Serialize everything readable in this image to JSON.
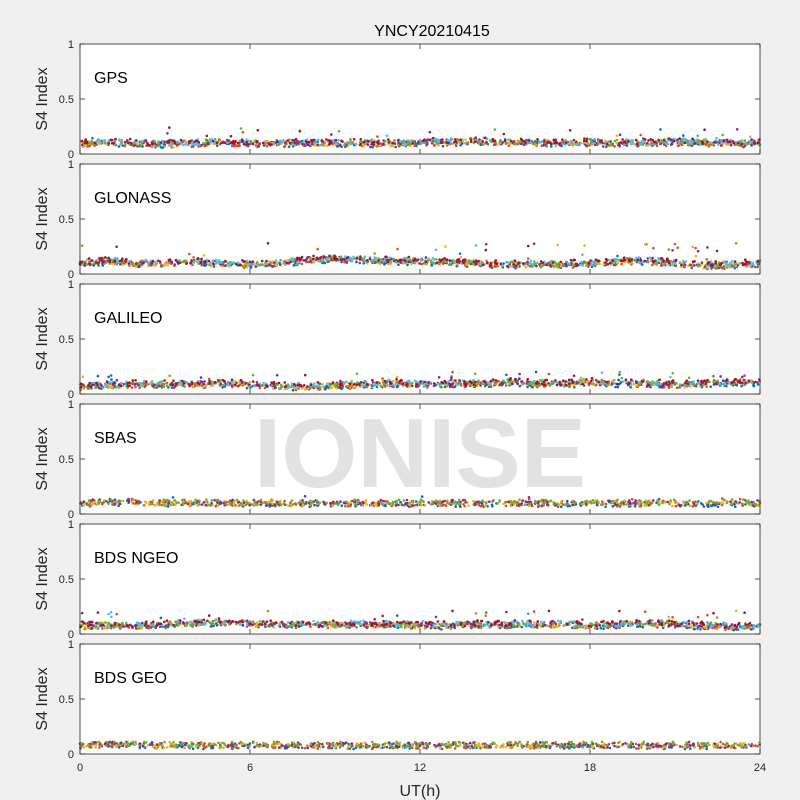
{
  "figure": {
    "title": "YNCY20210415",
    "watermark": "IONISE"
  },
  "colors": {
    "series": [
      "#0072BD",
      "#D95319",
      "#EDB120",
      "#7E2F8E",
      "#77AC30",
      "#4DBEEE",
      "#A2142F"
    ],
    "axes_bg": "#ffffff",
    "figure_bg": "#f0f0f0",
    "axis_line": "#262626",
    "watermark": "#e2e2e2"
  },
  "chart_data": [
    {
      "type": "scatter",
      "panel_label": "GPS",
      "ylabel": "S4 Index",
      "ylim": [
        0,
        1
      ],
      "yticks": [
        0,
        0.5,
        1
      ],
      "xlim": [
        0,
        24
      ],
      "xticks": [
        0,
        6,
        12,
        18,
        24
      ],
      "x_tick_labels_shown": false,
      "grid": false,
      "series_count": 7,
      "x": [
        0,
        1,
        2,
        3,
        4,
        5,
        6,
        7,
        8,
        9,
        10,
        11,
        12,
        13,
        14,
        15,
        16,
        17,
        18,
        19,
        20,
        21,
        22,
        23,
        24
      ],
      "s4_mean": [
        0.1,
        0.11,
        0.1,
        0.09,
        0.1,
        0.11,
        0.1,
        0.1,
        0.11,
        0.1,
        0.1,
        0.1,
        0.11,
        0.11,
        0.12,
        0.11,
        0.11,
        0.1,
        0.11,
        0.1,
        0.1,
        0.11,
        0.11,
        0.1,
        0.1
      ],
      "s4_max": 0.24
    },
    {
      "type": "scatter",
      "panel_label": "GLONASS",
      "ylabel": "S4 Index",
      "ylim": [
        0,
        1
      ],
      "yticks": [
        0,
        0.5,
        1
      ],
      "xlim": [
        0,
        24
      ],
      "xticks": [
        0,
        6,
        12,
        18,
        24
      ],
      "x_tick_labels_shown": false,
      "grid": false,
      "series_count": 7,
      "x": [
        0,
        1,
        2,
        3,
        4,
        5,
        6,
        7,
        8,
        9,
        10,
        11,
        12,
        13,
        14,
        15,
        16,
        17,
        18,
        19,
        20,
        21,
        22,
        23,
        24
      ],
      "s4_mean": [
        0.1,
        0.12,
        0.1,
        0.1,
        0.11,
        0.1,
        0.09,
        0.1,
        0.13,
        0.14,
        0.13,
        0.12,
        0.12,
        0.11,
        0.1,
        0.09,
        0.09,
        0.09,
        0.1,
        0.12,
        0.12,
        0.1,
        0.08,
        0.09,
        0.1
      ],
      "s4_max": 0.28
    },
    {
      "type": "scatter",
      "panel_label": "GALILEO",
      "ylabel": "S4 Index",
      "ylim": [
        0,
        1
      ],
      "yticks": [
        0,
        0.5,
        1
      ],
      "xlim": [
        0,
        24
      ],
      "xticks": [
        0,
        6,
        12,
        18,
        24
      ],
      "x_tick_labels_shown": false,
      "grid": false,
      "series_count": 7,
      "x": [
        0,
        1,
        2,
        3,
        4,
        5,
        6,
        7,
        8,
        9,
        10,
        11,
        12,
        13,
        14,
        15,
        16,
        17,
        18,
        19,
        20,
        21,
        22,
        23,
        24
      ],
      "s4_mean": [
        0.07,
        0.08,
        0.09,
        0.09,
        0.09,
        0.1,
        0.09,
        0.07,
        0.07,
        0.08,
        0.09,
        0.1,
        0.09,
        0.09,
        0.1,
        0.11,
        0.1,
        0.09,
        0.11,
        0.1,
        0.1,
        0.09,
        0.1,
        0.11,
        0.11
      ],
      "s4_max": 0.2
    },
    {
      "type": "scatter",
      "panel_label": "SBAS",
      "ylabel": "S4 Index",
      "ylim": [
        0,
        1
      ],
      "yticks": [
        0,
        0.5,
        1
      ],
      "xlim": [
        0,
        24
      ],
      "xticks": [
        0,
        6,
        12,
        18,
        24
      ],
      "x_tick_labels_shown": false,
      "grid": false,
      "series_count": 5,
      "x": [
        0,
        1,
        2,
        3,
        4,
        5,
        6,
        7,
        8,
        9,
        10,
        11,
        12,
        13,
        14,
        15,
        16,
        17,
        18,
        19,
        20,
        21,
        22,
        23,
        24
      ],
      "s4_mean": [
        0.1,
        0.11,
        0.11,
        0.1,
        0.1,
        0.1,
        0.1,
        0.1,
        0.1,
        0.1,
        0.1,
        0.1,
        0.1,
        0.1,
        0.1,
        0.1,
        0.1,
        0.1,
        0.1,
        0.1,
        0.1,
        0.1,
        0.1,
        0.1,
        0.1
      ],
      "s4_max": 0.17
    },
    {
      "type": "scatter",
      "panel_label": "BDS NGEO",
      "ylabel": "S4 Index",
      "ylim": [
        0,
        1
      ],
      "yticks": [
        0,
        0.5,
        1
      ],
      "xlim": [
        0,
        24
      ],
      "xticks": [
        0,
        6,
        12,
        18,
        24
      ],
      "x_tick_labels_shown": false,
      "grid": false,
      "series_count": 7,
      "x": [
        0,
        1,
        2,
        3,
        4,
        5,
        6,
        7,
        8,
        9,
        10,
        11,
        12,
        13,
        14,
        15,
        16,
        17,
        18,
        19,
        20,
        21,
        22,
        23,
        24
      ],
      "s4_mean": [
        0.08,
        0.08,
        0.08,
        0.09,
        0.1,
        0.11,
        0.1,
        0.09,
        0.09,
        0.09,
        0.09,
        0.09,
        0.08,
        0.08,
        0.09,
        0.09,
        0.09,
        0.09,
        0.08,
        0.09,
        0.1,
        0.09,
        0.08,
        0.07,
        0.07
      ],
      "s4_max": 0.21
    },
    {
      "type": "scatter",
      "panel_label": "BDS GEO",
      "ylabel": "S4 Index",
      "ylim": [
        0,
        1
      ],
      "yticks": [
        0,
        0.5,
        1
      ],
      "xlim": [
        0,
        24
      ],
      "xticks": [
        0,
        6,
        12,
        18,
        24
      ],
      "xlabel": "UT(h)",
      "x_tick_labels_shown": true,
      "grid": false,
      "series_count": 5,
      "x": [
        0,
        1,
        2,
        3,
        4,
        5,
        6,
        7,
        8,
        9,
        10,
        11,
        12,
        13,
        14,
        15,
        16,
        17,
        18,
        19,
        20,
        21,
        22,
        23,
        24
      ],
      "s4_mean": [
        0.08,
        0.09,
        0.09,
        0.08,
        0.08,
        0.08,
        0.08,
        0.08,
        0.08,
        0.08,
        0.08,
        0.08,
        0.08,
        0.08,
        0.08,
        0.08,
        0.08,
        0.08,
        0.08,
        0.08,
        0.08,
        0.08,
        0.08,
        0.08,
        0.08
      ],
      "s4_max": 0.11
    }
  ]
}
